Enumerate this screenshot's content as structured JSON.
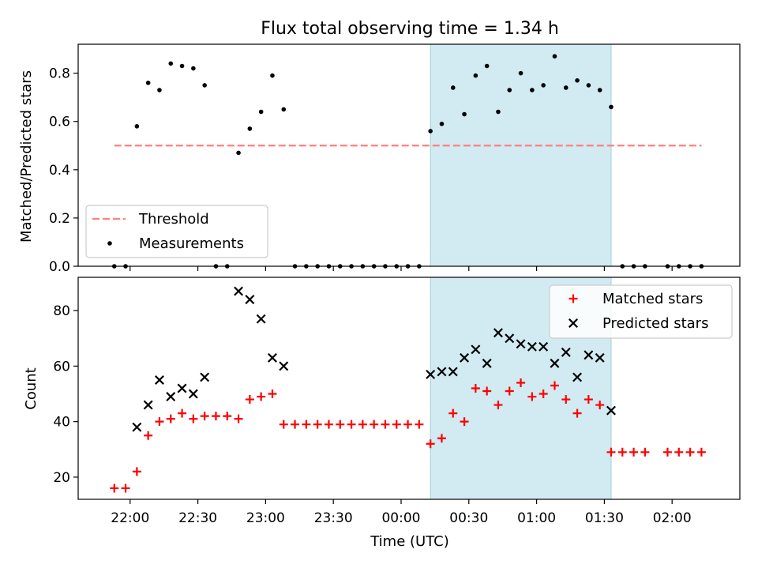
{
  "chart_data": [
    {
      "type": "scatter",
      "title": "Flux total observing time = 1.34 h",
      "ylabel": "Matched/Predicted stars",
      "ylim": [
        0,
        0.92
      ],
      "yticks": [
        "0.0",
        "0.2",
        "0.4",
        "0.6",
        "0.8"
      ],
      "shaded_region": {
        "from": "00:13",
        "to": "01:33",
        "color": "#add8e6"
      },
      "threshold": {
        "name": "Threshold",
        "value": 0.5,
        "from": "21:53",
        "to": "02:13",
        "color": "#ff7f7f"
      },
      "legend": {
        "position": "lower left",
        "entries": [
          "Threshold",
          "Measurements"
        ]
      },
      "series": [
        {
          "name": "Measurements",
          "color": "#000000",
          "marker": "dot",
          "points": [
            [
              "21:53",
              0.0
            ],
            [
              "21:58",
              0.0
            ],
            [
              "22:03",
              0.58
            ],
            [
              "22:08",
              0.76
            ],
            [
              "22:13",
              0.73
            ],
            [
              "22:18",
              0.84
            ],
            [
              "22:23",
              0.83
            ],
            [
              "22:28",
              0.82
            ],
            [
              "22:33",
              0.75
            ],
            [
              "22:38",
              0.0
            ],
            [
              "22:43",
              0.0
            ],
            [
              "22:48",
              0.47
            ],
            [
              "22:53",
              0.57
            ],
            [
              "22:58",
              0.64
            ],
            [
              "23:03",
              0.79
            ],
            [
              "23:08",
              0.65
            ],
            [
              "23:13",
              0.0
            ],
            [
              "23:18",
              0.0
            ],
            [
              "23:23",
              0.0
            ],
            [
              "23:28",
              0.0
            ],
            [
              "23:33",
              0.0
            ],
            [
              "23:38",
              0.0
            ],
            [
              "23:43",
              0.0
            ],
            [
              "23:48",
              0.0
            ],
            [
              "23:53",
              0.0
            ],
            [
              "23:58",
              0.0
            ],
            [
              "00:03",
              0.0
            ],
            [
              "00:08",
              0.0
            ],
            [
              "00:13",
              0.56
            ],
            [
              "00:18",
              0.59
            ],
            [
              "00:23",
              0.74
            ],
            [
              "00:28",
              0.63
            ],
            [
              "00:33",
              0.79
            ],
            [
              "00:38",
              0.83
            ],
            [
              "00:43",
              0.64
            ],
            [
              "00:48",
              0.73
            ],
            [
              "00:53",
              0.8
            ],
            [
              "00:58",
              0.73
            ],
            [
              "01:03",
              0.75
            ],
            [
              "01:08",
              0.87
            ],
            [
              "01:13",
              0.74
            ],
            [
              "01:18",
              0.77
            ],
            [
              "01:23",
              0.75
            ],
            [
              "01:28",
              0.73
            ],
            [
              "01:33",
              0.66
            ],
            [
              "01:38",
              0.0
            ],
            [
              "01:43",
              0.0
            ],
            [
              "01:48",
              0.0
            ],
            [
              "01:58",
              0.0
            ],
            [
              "02:03",
              0.0
            ],
            [
              "02:08",
              0.0
            ],
            [
              "02:13",
              0.0
            ]
          ]
        }
      ]
    },
    {
      "type": "scatter",
      "xlabel": "Time (UTC)",
      "ylabel": "Count",
      "ylim": [
        12,
        92
      ],
      "yticks": [
        "20",
        "40",
        "60",
        "80"
      ],
      "x_range": [
        "21:37",
        "02:30"
      ],
      "xticks": [
        "22:00",
        "22:30",
        "23:00",
        "23:30",
        "00:00",
        "00:30",
        "01:00",
        "01:30",
        "02:00"
      ],
      "legend": {
        "position": "upper right",
        "entries": [
          "Matched stars",
          "Predicted stars"
        ]
      },
      "series": [
        {
          "name": "Matched stars",
          "color": "#ff0000",
          "marker": "plus",
          "points": [
            [
              "21:53",
              16
            ],
            [
              "21:58",
              16
            ],
            [
              "22:03",
              22
            ],
            [
              "22:08",
              35
            ],
            [
              "22:13",
              40
            ],
            [
              "22:18",
              41
            ],
            [
              "22:23",
              43
            ],
            [
              "22:28",
              41
            ],
            [
              "22:33",
              42
            ],
            [
              "22:38",
              42
            ],
            [
              "22:43",
              42
            ],
            [
              "22:48",
              41
            ],
            [
              "22:53",
              48
            ],
            [
              "22:58",
              49
            ],
            [
              "23:03",
              50
            ],
            [
              "23:08",
              39
            ],
            [
              "23:13",
              39
            ],
            [
              "23:18",
              39
            ],
            [
              "23:23",
              39
            ],
            [
              "23:28",
              39
            ],
            [
              "23:33",
              39
            ],
            [
              "23:38",
              39
            ],
            [
              "23:43",
              39
            ],
            [
              "23:48",
              39
            ],
            [
              "23:53",
              39
            ],
            [
              "23:58",
              39
            ],
            [
              "00:03",
              39
            ],
            [
              "00:08",
              39
            ],
            [
              "00:13",
              32
            ],
            [
              "00:18",
              34
            ],
            [
              "00:23",
              43
            ],
            [
              "00:28",
              40
            ],
            [
              "00:33",
              52
            ],
            [
              "00:38",
              51
            ],
            [
              "00:43",
              46
            ],
            [
              "00:48",
              51
            ],
            [
              "00:53",
              54
            ],
            [
              "00:58",
              49
            ],
            [
              "01:03",
              50
            ],
            [
              "01:08",
              53
            ],
            [
              "01:13",
              48
            ],
            [
              "01:18",
              43
            ],
            [
              "01:23",
              48
            ],
            [
              "01:28",
              46
            ],
            [
              "01:33",
              29
            ],
            [
              "01:38",
              29
            ],
            [
              "01:43",
              29
            ],
            [
              "01:48",
              29
            ],
            [
              "01:58",
              29
            ],
            [
              "02:03",
              29
            ],
            [
              "02:08",
              29
            ],
            [
              "02:13",
              29
            ]
          ]
        },
        {
          "name": "Predicted stars",
          "color": "#000000",
          "marker": "x",
          "points": [
            [
              "22:03",
              38
            ],
            [
              "22:08",
              46
            ],
            [
              "22:13",
              55
            ],
            [
              "22:18",
              49
            ],
            [
              "22:23",
              52
            ],
            [
              "22:28",
              50
            ],
            [
              "22:33",
              56
            ],
            [
              "22:48",
              87
            ],
            [
              "22:53",
              84
            ],
            [
              "22:58",
              77
            ],
            [
              "23:03",
              63
            ],
            [
              "23:08",
              60
            ],
            [
              "00:13",
              57
            ],
            [
              "00:18",
              58
            ],
            [
              "00:23",
              58
            ],
            [
              "00:28",
              63
            ],
            [
              "00:33",
              66
            ],
            [
              "00:38",
              61
            ],
            [
              "00:43",
              72
            ],
            [
              "00:48",
              70
            ],
            [
              "00:53",
              68
            ],
            [
              "00:58",
              67
            ],
            [
              "01:03",
              67
            ],
            [
              "01:08",
              61
            ],
            [
              "01:13",
              65
            ],
            [
              "01:18",
              56
            ],
            [
              "01:23",
              64
            ],
            [
              "01:28",
              63
            ],
            [
              "01:33",
              44
            ]
          ]
        }
      ]
    }
  ]
}
